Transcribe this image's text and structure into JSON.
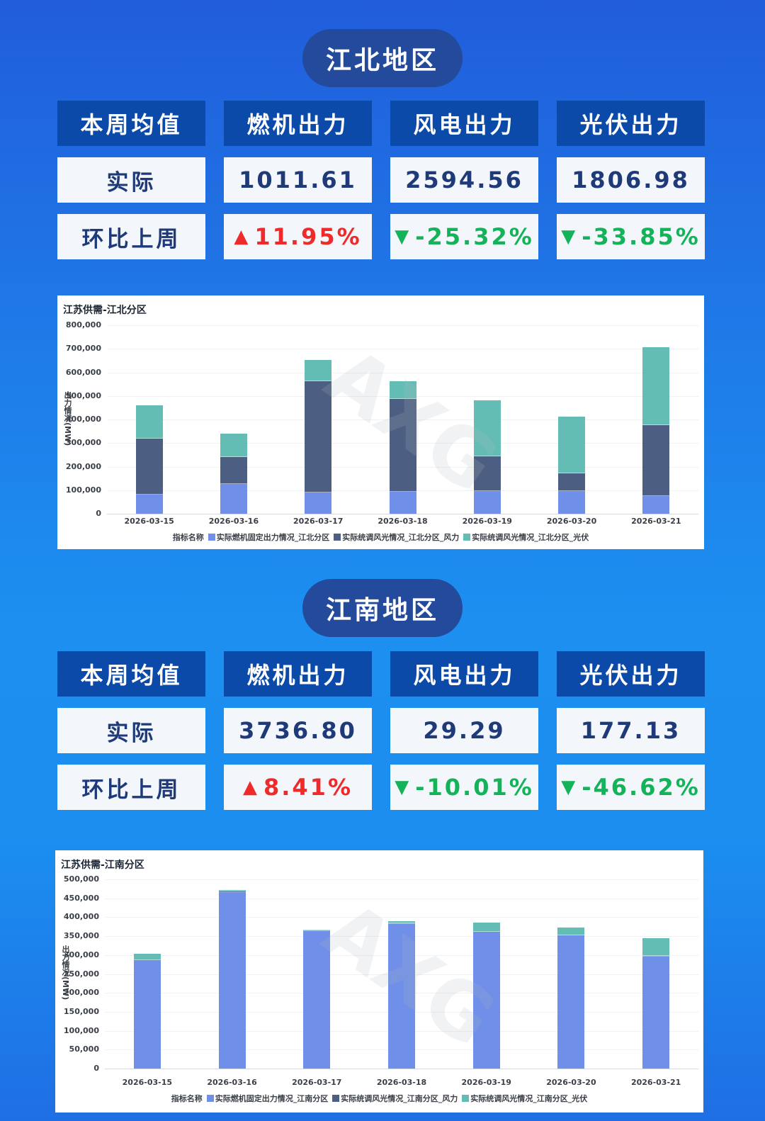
{
  "regions": [
    {
      "title": "江北地区",
      "table": {
        "headers": [
          "本周均值",
          "燃机出力",
          "风电出力",
          "光伏出力"
        ],
        "actual_label": "实际",
        "actual_values": [
          "1011.61",
          "2594.56",
          "1806.98"
        ],
        "change_label": "环比上周",
        "changes": [
          {
            "direction": "up",
            "icon": "▲",
            "value": "11.95%"
          },
          {
            "direction": "down",
            "icon": "▼",
            "value": "-25.32%"
          },
          {
            "direction": "down",
            "icon": "▼",
            "value": "-33.85%"
          }
        ]
      }
    },
    {
      "title": "江南地区",
      "table": {
        "headers": [
          "本周均值",
          "燃机出力",
          "风电出力",
          "光伏出力"
        ],
        "actual_label": "实际",
        "actual_values": [
          "3736.80",
          "29.29",
          "177.13"
        ],
        "change_label": "环比上周",
        "changes": [
          {
            "direction": "up",
            "icon": "▲",
            "value": "8.41%"
          },
          {
            "direction": "down",
            "icon": "▼",
            "value": "-10.01%"
          },
          {
            "direction": "down",
            "icon": "▼",
            "value": "-46.62%"
          }
        ]
      }
    }
  ],
  "colors": {
    "gas": "#6f8fe8",
    "wind": "#4c5f82",
    "solar": "#63bdb5",
    "up": "#ee2a2a",
    "down": "#14b35a",
    "header_bg": "#0b4aa8",
    "pill_bg": "#234a9b"
  },
  "chart_data": [
    {
      "type": "bar",
      "stacked": true,
      "title": "江苏供需-江北分区",
      "xlabel": "",
      "ylabel": "出力情况(MW)",
      "ylim": [
        0,
        800000
      ],
      "yticks": [
        "0",
        "100,000",
        "200,000",
        "300,000",
        "400,000",
        "500,000",
        "600,000",
        "700,000",
        "800,000"
      ],
      "grid": true,
      "legend_title": "指标名称",
      "legend_position": "bottom",
      "categories": [
        "2026-03-15",
        "2026-03-16",
        "2026-03-17",
        "2026-03-18",
        "2026-03-19",
        "2026-03-20",
        "2026-03-21"
      ],
      "series": [
        {
          "name": "实际燃机固定出力情况_江北分区",
          "values": [
            80000,
            125000,
            90000,
            93000,
            96000,
            95000,
            75000
          ]
        },
        {
          "name": "实际统调风光情况_江北分区_风力",
          "values": [
            240000,
            115000,
            472000,
            395000,
            147000,
            76000,
            302000
          ]
        },
        {
          "name": "实际统调风光情况_江北分区_光伏",
          "values": [
            140000,
            100000,
            90000,
            75000,
            238000,
            241000,
            330000
          ]
        }
      ]
    },
    {
      "type": "bar",
      "stacked": true,
      "title": "江苏供需-江南分区",
      "xlabel": "",
      "ylabel": "出力情况(MW)",
      "ylim": [
        0,
        500000
      ],
      "yticks": [
        "0",
        "50,000",
        "100,000",
        "150,000",
        "200,000",
        "250,000",
        "300,000",
        "350,000",
        "400,000",
        "450,000",
        "500,000"
      ],
      "grid": true,
      "legend_title": "指标名称",
      "legend_position": "bottom",
      "categories": [
        "2026-03-15",
        "2026-03-16",
        "2026-03-17",
        "2026-03-18",
        "2026-03-19",
        "2026-03-20",
        "2026-03-21"
      ],
      "series": [
        {
          "name": "实际燃机固定出力情况_江南分区",
          "values": [
            286000,
            465000,
            364000,
            382000,
            361000,
            352000,
            295000
          ]
        },
        {
          "name": "实际统调风光情况_江南分区_风力",
          "values": [
            500,
            3000,
            2000,
            2000,
            500,
            500,
            2000
          ]
        },
        {
          "name": "实际统调风光情况_江南分区_光伏",
          "values": [
            16000,
            4000,
            2000,
            6000,
            24000,
            21000,
            48000
          ]
        }
      ]
    }
  ]
}
